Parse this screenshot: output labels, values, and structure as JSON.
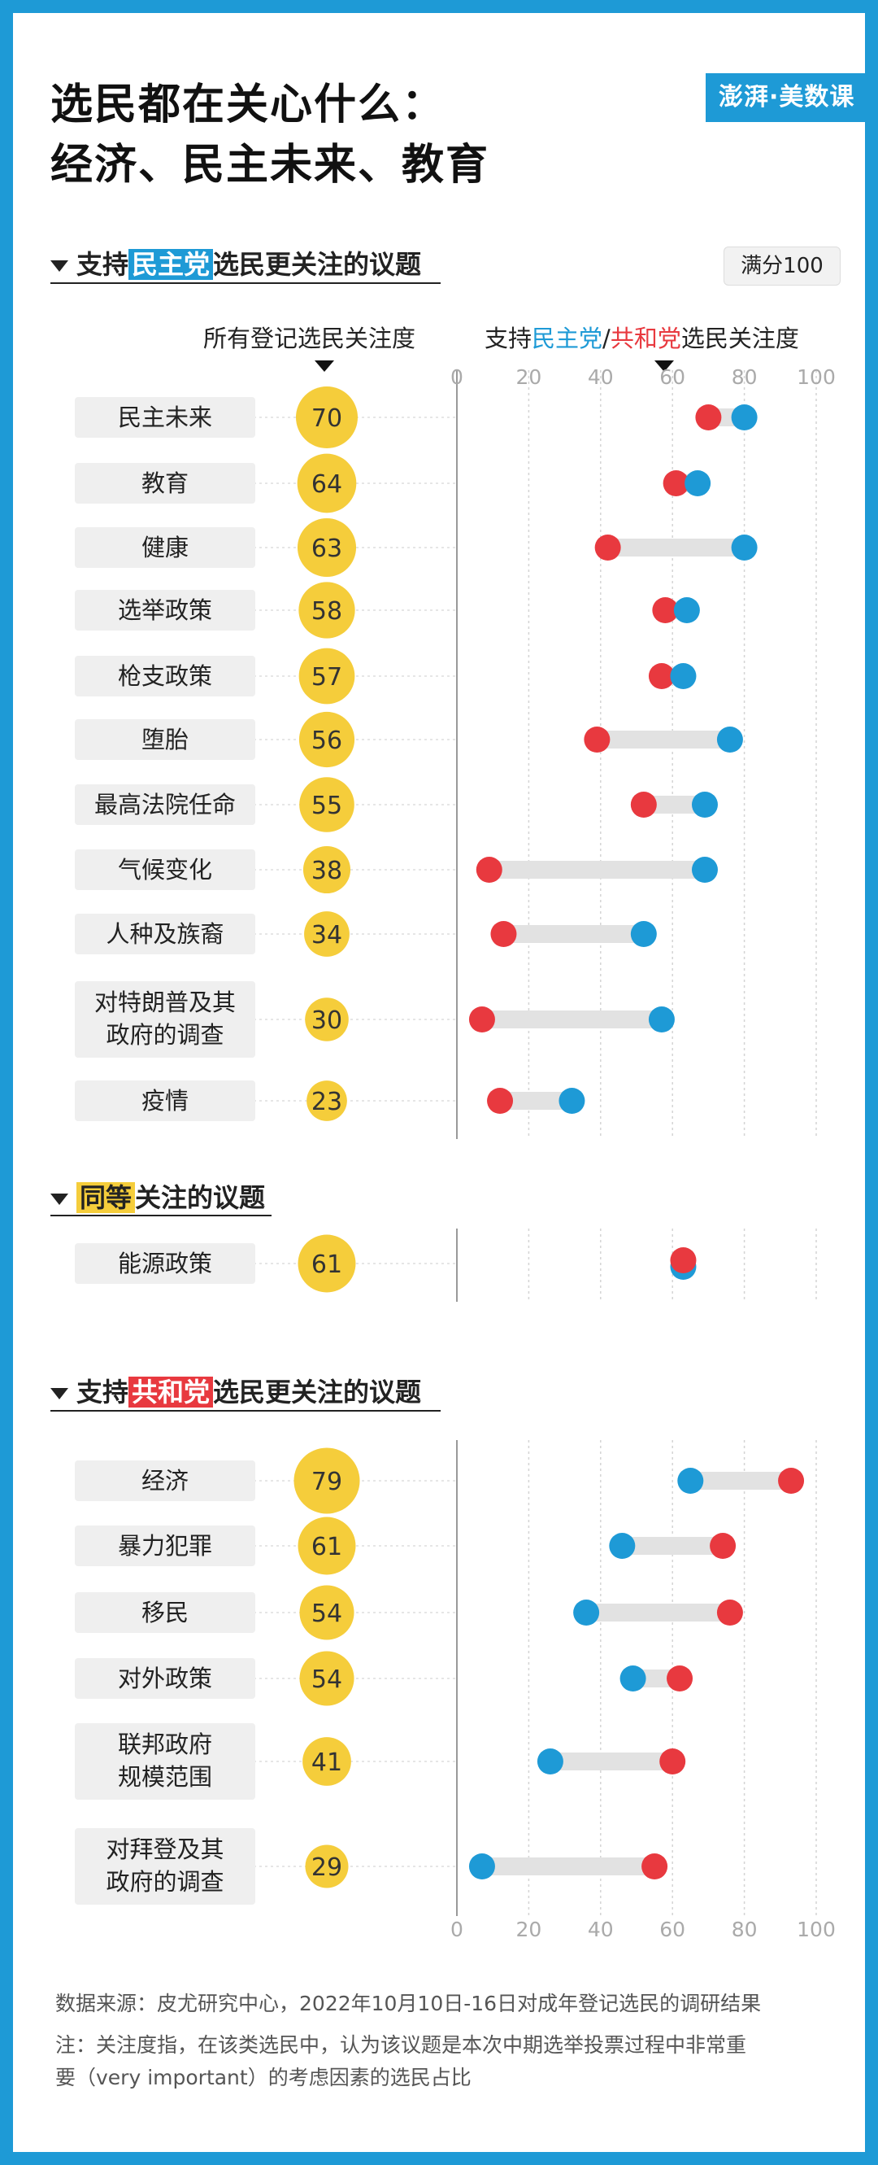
{
  "title": [
    "选民都在关心什么：",
    "经济、民主未来、教育"
  ],
  "logo_text": "澎湃·美数课",
  "score_badge": "满分100",
  "column_headers": {
    "all_voters": "所有登记选民关注度",
    "supporters_prefix": "支持",
    "dem": "民主党",
    "slash": "/",
    "rep": "共和党",
    "supporters_suffix": "选民关注度"
  },
  "sections": {
    "dem": {
      "prefix": "支持",
      "highlight": "民主党",
      "suffix": "选民更关注的议题"
    },
    "equal": {
      "prefix": "",
      "highlight": "同等",
      "suffix": "关注的议题"
    },
    "rep": {
      "prefix": "支持",
      "highlight": "共和党",
      "suffix": "选民更关注的议题"
    }
  },
  "chart_data": {
    "type": "dumbbell",
    "xlim": [
      0,
      100
    ],
    "xticks": [
      "0",
      "20",
      "40",
      "60",
      "80",
      "100"
    ],
    "series": [
      {
        "name": "所有登记选民关注度"
      },
      {
        "name": "民主党"
      },
      {
        "name": "共和党"
      }
    ],
    "groups": [
      {
        "section": "dem",
        "items": [
          {
            "label": "民主未来",
            "all": 70,
            "dem": 80,
            "rep": 70
          },
          {
            "label": "教育",
            "all": 64,
            "dem": 67,
            "rep": 61
          },
          {
            "label": "健康",
            "all": 63,
            "dem": 80,
            "rep": 42
          },
          {
            "label": "选举政策",
            "all": 58,
            "dem": 64,
            "rep": 58
          },
          {
            "label": "枪支政策",
            "all": 57,
            "dem": 63,
            "rep": 57
          },
          {
            "label": "堕胎",
            "all": 56,
            "dem": 76,
            "rep": 39
          },
          {
            "label": "最高法院任命",
            "all": 55,
            "dem": 69,
            "rep": 52
          },
          {
            "label": "气候变化",
            "all": 38,
            "dem": 69,
            "rep": 9
          },
          {
            "label": "人种及族裔",
            "all": 34,
            "dem": 52,
            "rep": 13
          },
          {
            "label": "对特朗普及其政府的调查",
            "all": 30,
            "dem": 57,
            "rep": 7
          },
          {
            "label": "疫情",
            "all": 23,
            "dem": 32,
            "rep": 12
          }
        ]
      },
      {
        "section": "equal",
        "items": [
          {
            "label": "能源政策",
            "all": 61,
            "dem": 63,
            "rep": 63
          }
        ]
      },
      {
        "section": "rep",
        "items": [
          {
            "label": "经济",
            "all": 79,
            "dem": 65,
            "rep": 93
          },
          {
            "label": "暴力犯罪",
            "all": 61,
            "dem": 46,
            "rep": 74
          },
          {
            "label": "移民",
            "all": 54,
            "dem": 36,
            "rep": 76
          },
          {
            "label": "对外政策",
            "all": 54,
            "dem": 49,
            "rep": 62
          },
          {
            "label": "联邦政府规模范围",
            "all": 41,
            "dem": 26,
            "rep": 60
          },
          {
            "label": "对拜登及其政府的调查",
            "all": 29,
            "dem": 7,
            "rep": 55
          }
        ]
      }
    ]
  },
  "colors": {
    "border": "#1e9ad6",
    "dem": "#1e9ad6",
    "rep": "#e8393f",
    "all": "#f5cd3b",
    "connector": "#e2e2e2",
    "label_box": "#efefef"
  },
  "notes": [
    "数据来源：皮尤研究中心，2022年10月10日-16日对成年登记选民的调研结果",
    "注：关注度指，在该类选民中，认为该议题是本次中期选举投票过程中非常重",
    "要（very important）的考虑因素的选民占比"
  ]
}
